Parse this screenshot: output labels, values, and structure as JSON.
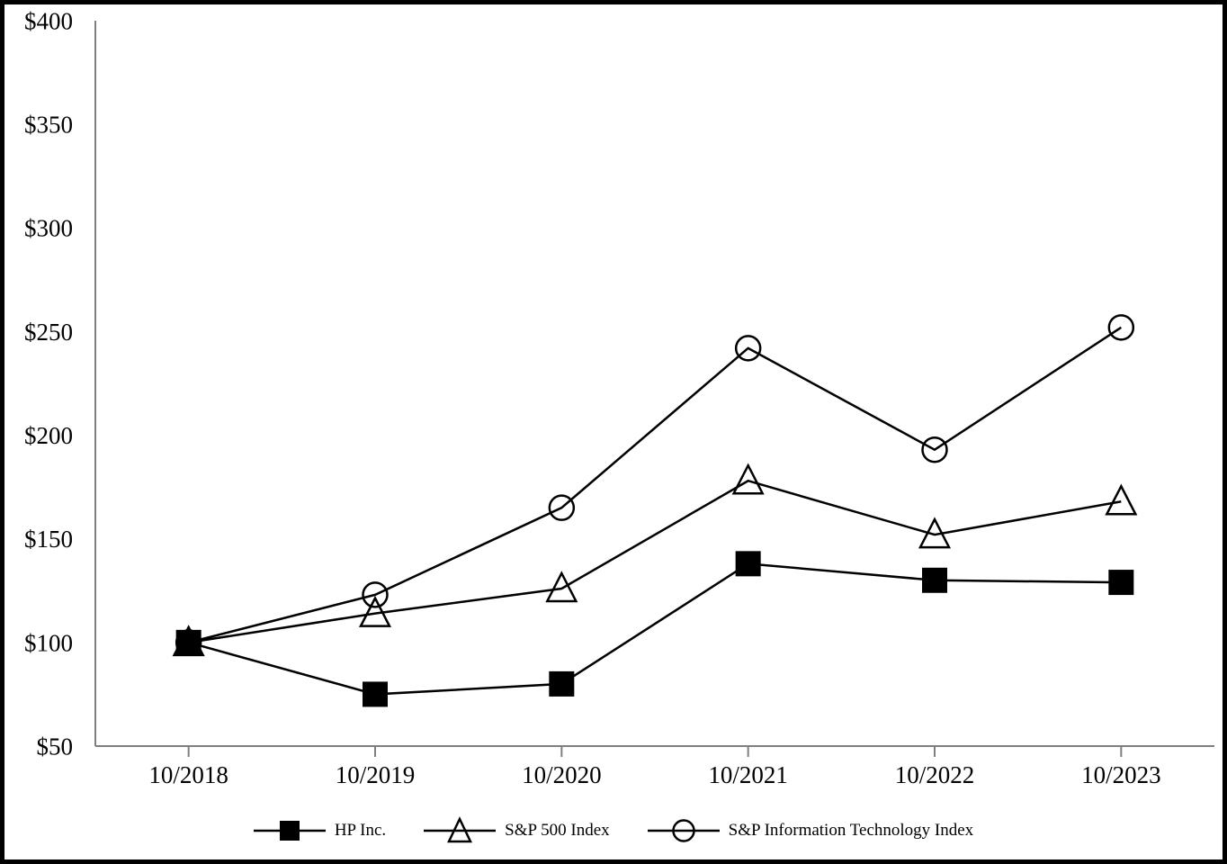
{
  "chart_data": {
    "type": "line",
    "title": "",
    "xlabel": "",
    "ylabel": "",
    "categories": [
      "10/2018",
      "10/2019",
      "10/2020",
      "10/2021",
      "10/2022",
      "10/2023"
    ],
    "y_ticks": [
      50,
      100,
      150,
      200,
      250,
      300,
      350,
      400
    ],
    "y_tick_labels": [
      "$50",
      "$100",
      "$150",
      "$200",
      "$250",
      "$300",
      "$350",
      "$400"
    ],
    "ylim": [
      50,
      400
    ],
    "grid": false,
    "legend_position": "bottom-center",
    "series": [
      {
        "name": "HP Inc.",
        "marker": "square",
        "values": [
          100,
          75,
          80,
          138,
          130,
          129
        ]
      },
      {
        "name": "S&P 500 Index",
        "marker": "triangle",
        "values": [
          100,
          114,
          126,
          178,
          152,
          168
        ]
      },
      {
        "name": "S&P Information Technology Index",
        "marker": "circle",
        "values": [
          100,
          123,
          165,
          242,
          193,
          252
        ]
      }
    ],
    "colors": {
      "series_line": "#000000",
      "marker_stroke": "#000000",
      "square_fill": "#000000",
      "axis_line": "#7f7f7f",
      "text": "#000000",
      "background": "#ffffff",
      "frame_border": "#000000"
    }
  }
}
